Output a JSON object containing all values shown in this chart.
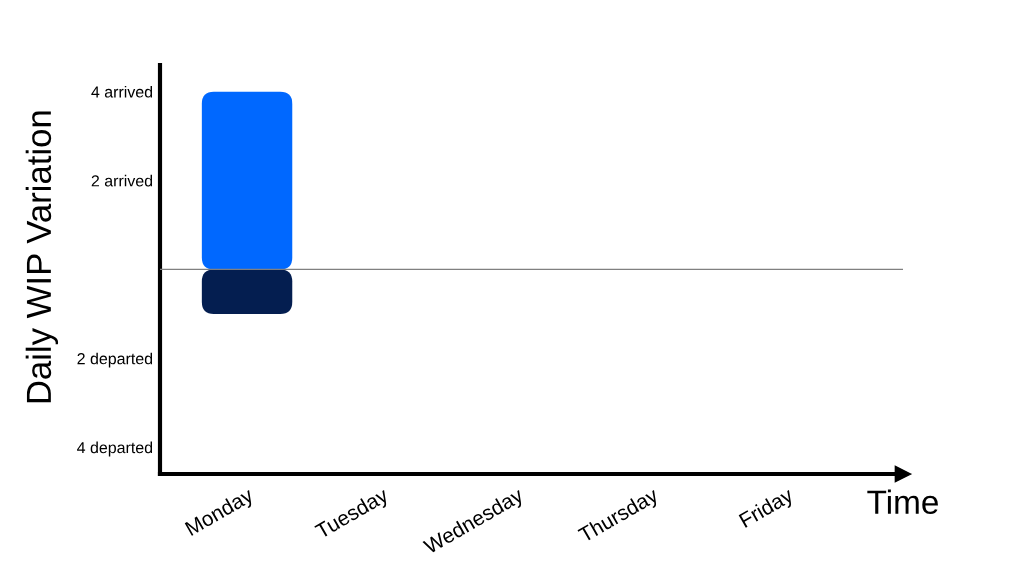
{
  "chart_data": {
    "type": "bar",
    "xlabel": "Time",
    "ylabel": "Daily WIP Variation",
    "categories": [
      "Monday",
      "Tuesday",
      "Wednesday",
      "Thursday",
      "Friday"
    ],
    "series": [
      {
        "color": "#0068ff",
        "values": [
          4,
          null,
          null,
          null,
          null
        ]
      },
      {
        "color": "#041e50",
        "values": [
          -1,
          null,
          null,
          null,
          null
        ]
      }
    ],
    "stacked": true,
    "ylim": [
      -4.6,
      4.6
    ],
    "yticks": [
      {
        "value": 4,
        "label": "4 arrived"
      },
      {
        "value": 2,
        "label": "2 arrived"
      },
      {
        "value": -2,
        "label": "2 departed"
      },
      {
        "value": -4,
        "label": "4 departed"
      }
    ],
    "ref_lines": [
      {
        "axis": "y",
        "value": 0,
        "color": "#808080"
      }
    ]
  }
}
